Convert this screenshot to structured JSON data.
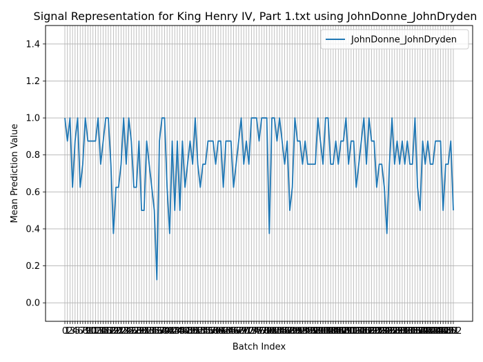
{
  "chart_data": {
    "type": "line",
    "title": "Signal Representation for King Henry IV, Part 1.txt using JohnDonne_JohnDryden",
    "xlabel": "Batch Index",
    "ylabel": "Mean Prediction Value",
    "ylim": [
      -0.1,
      1.5
    ],
    "yticks": [
      "0.0",
      "0.2",
      "0.4",
      "0.6",
      "0.8",
      "1.0",
      "1.2",
      "1.4"
    ],
    "grid": true,
    "legend_position": "top-right",
    "colors": {
      "series": "#1f77b4",
      "grid": "#b0b0b0"
    },
    "series": [
      {
        "name": "JohnDonne_JohnDryden",
        "values": [
          1.0,
          0.875,
          1.0,
          0.625,
          0.875,
          1.0,
          0.625,
          0.75,
          1.0,
          0.875,
          0.875,
          0.875,
          0.875,
          1.0,
          0.75,
          0.875,
          1.0,
          1.0,
          0.75,
          0.375,
          0.625,
          0.625,
          0.75,
          1.0,
          0.75,
          1.0,
          0.875,
          0.625,
          0.625,
          0.875,
          0.5,
          0.5,
          0.875,
          0.75,
          0.625,
          0.5,
          0.125,
          0.875,
          1.0,
          1.0,
          0.625,
          0.375,
          0.875,
          0.5,
          0.875,
          0.5,
          0.875,
          0.625,
          0.75,
          0.875,
          0.75,
          1.0,
          0.75,
          0.625,
          0.75,
          0.75,
          0.875,
          0.875,
          0.875,
          0.75,
          0.875,
          0.875,
          0.625,
          0.875,
          0.875,
          0.875,
          0.625,
          0.75,
          0.875,
          1.0,
          0.75,
          0.875,
          0.75,
          1.0,
          1.0,
          1.0,
          0.875,
          1.0,
          1.0,
          1.0,
          0.375,
          1.0,
          1.0,
          0.875,
          1.0,
          0.875,
          0.75,
          0.875,
          0.5,
          0.625,
          1.0,
          0.875,
          0.875,
          0.75,
          0.875,
          0.75,
          0.75,
          0.75,
          0.75,
          1.0,
          0.875,
          0.75,
          1.0,
          1.0,
          0.75,
          0.75,
          0.875,
          0.75,
          0.875,
          0.875,
          1.0,
          0.75,
          0.875,
          0.875,
          0.625,
          0.75,
          0.875,
          1.0,
          0.75,
          1.0,
          0.875,
          0.875,
          0.625,
          0.75,
          0.75,
          0.625,
          0.375,
          0.75,
          1.0,
          0.75,
          0.875,
          0.75,
          0.875,
          0.75,
          0.875,
          0.75,
          0.75,
          1.0,
          0.625,
          0.5,
          0.875,
          0.75,
          0.875,
          0.75,
          0.75,
          0.875,
          0.875,
          0.875,
          0.5,
          0.75,
          0.75,
          0.875,
          0.5
        ]
      }
    ]
  }
}
